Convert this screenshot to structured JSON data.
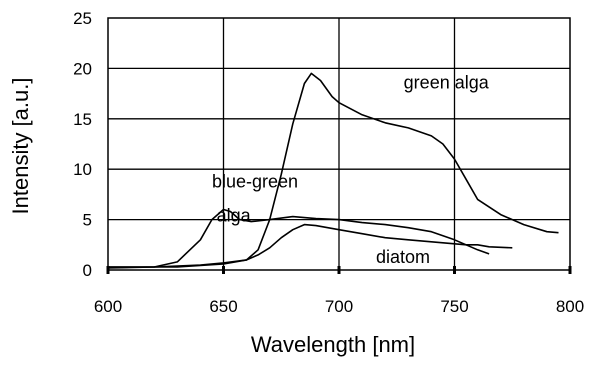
{
  "chart_data": {
    "type": "line",
    "xlabel": "Wavelength  [nm]",
    "ylabel": "Intensity  [a.u.]",
    "xlim": [
      600,
      800
    ],
    "ylim": [
      0,
      25
    ],
    "xticks": [
      600,
      650,
      700,
      750,
      800
    ],
    "yticks": [
      0,
      5,
      10,
      15,
      20,
      25
    ],
    "grid": true,
    "series": [
      {
        "name": "green alga",
        "x": [
          600,
          620,
          640,
          650,
          660,
          665,
          670,
          675,
          680,
          685,
          688,
          692,
          697,
          700,
          710,
          720,
          730,
          740,
          745,
          750,
          755,
          760,
          770,
          780,
          790,
          795
        ],
        "y": [
          0.3,
          0.3,
          0.5,
          0.7,
          1.0,
          2.0,
          5.0,
          9.5,
          14.5,
          18.5,
          19.5,
          18.8,
          17.2,
          16.6,
          15.4,
          14.6,
          14.1,
          13.3,
          12.5,
          11.0,
          9.0,
          7.0,
          5.5,
          4.5,
          3.8,
          3.7
        ]
      },
      {
        "name": "blue-green alga",
        "x": [
          600,
          620,
          630,
          640,
          645,
          650,
          653,
          657,
          662,
          670,
          680,
          690,
          700,
          710,
          720,
          730,
          740,
          750,
          760,
          765
        ],
        "y": [
          0.2,
          0.3,
          0.8,
          3.0,
          5.0,
          6.0,
          5.8,
          5.0,
          4.8,
          5.0,
          5.3,
          5.1,
          5.0,
          4.7,
          4.5,
          4.2,
          3.8,
          3.0,
          2.0,
          1.6
        ]
      },
      {
        "name": "diatom",
        "x": [
          600,
          630,
          650,
          660,
          665,
          670,
          675,
          680,
          685,
          690,
          700,
          710,
          720,
          730,
          740,
          750,
          755,
          760,
          765,
          775
        ],
        "y": [
          0.3,
          0.3,
          0.6,
          1.0,
          1.5,
          2.2,
          3.2,
          4.0,
          4.5,
          4.4,
          4.0,
          3.6,
          3.2,
          3.0,
          2.8,
          2.6,
          2.5,
          2.5,
          2.3,
          2.2
        ]
      }
    ],
    "annotations": [
      {
        "text": "green alga",
        "x": 728,
        "y": 18.0
      },
      {
        "text": "blue-green",
        "x": 645,
        "y": 8.2
      },
      {
        "text": "alga",
        "x": 647,
        "y": 4.8
      },
      {
        "text": "diatom",
        "x": 716,
        "y": 0.7
      }
    ]
  }
}
